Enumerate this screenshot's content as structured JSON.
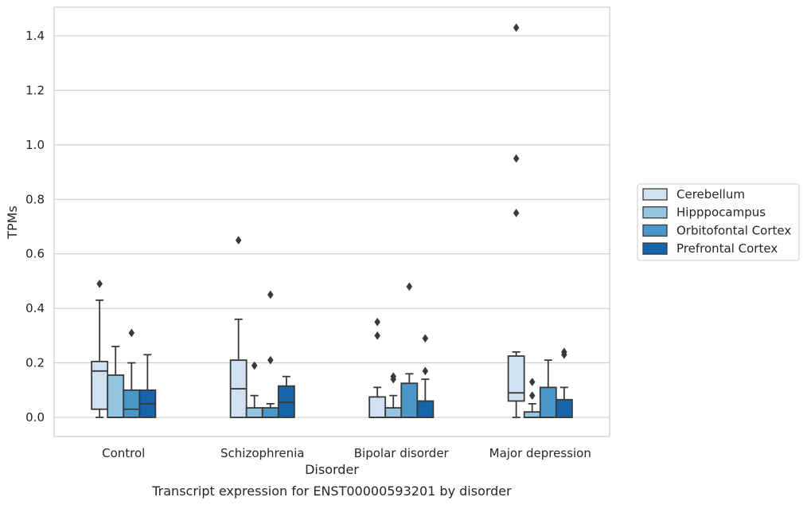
{
  "chart_data": {
    "type": "box",
    "caption": "Transcript expression for ENST00000593201 by disorder",
    "xlabel": "Disorder",
    "ylabel": "TPMs",
    "ylim": [
      -0.07,
      1.5
    ],
    "yticks": [
      0.0,
      0.2,
      0.4,
      0.6,
      0.8,
      1.0,
      1.2,
      1.4
    ],
    "ytick_labels": [
      "0.0",
      "0.2",
      "0.4",
      "0.6",
      "0.8",
      "1.0",
      "1.2",
      "1.4"
    ],
    "grid": "horizontal",
    "legend_placement": "right",
    "categories": [
      "Control",
      "Schizophrenia",
      "Bipolar disorder",
      "Major depression"
    ],
    "series": [
      {
        "name": "Cerebellum",
        "color": "#d0e1f2",
        "boxes": [
          {
            "min": 0.0,
            "q1": 0.03,
            "median": 0.17,
            "q3": 0.205,
            "max": 0.43,
            "outliers": [
              0.49
            ]
          },
          {
            "min": 0.0,
            "q1": 0.0,
            "median": 0.105,
            "q3": 0.21,
            "max": 0.36,
            "outliers": [
              0.65
            ]
          },
          {
            "min": 0.0,
            "q1": 0.0,
            "median": 0.0,
            "q3": 0.075,
            "max": 0.11,
            "outliers": [
              0.3,
              0.35
            ]
          },
          {
            "min": 0.0,
            "q1": 0.06,
            "median": 0.09,
            "q3": 0.225,
            "max": 0.24,
            "outliers": [
              0.75,
              0.95,
              1.43
            ]
          }
        ]
      },
      {
        "name": "Hipppocampus",
        "color": "#94c4df",
        "boxes": [
          {
            "min": 0.0,
            "q1": 0.0,
            "median": 0.0,
            "q3": 0.155,
            "max": 0.26,
            "outliers": []
          },
          {
            "min": 0.0,
            "q1": 0.0,
            "median": 0.0,
            "q3": 0.035,
            "max": 0.08,
            "outliers": [
              0.19
            ]
          },
          {
            "min": 0.0,
            "q1": 0.0,
            "median": 0.0,
            "q3": 0.035,
            "max": 0.08,
            "outliers": [
              0.14,
              0.15
            ]
          },
          {
            "min": 0.0,
            "q1": 0.0,
            "median": 0.0,
            "q3": 0.02,
            "max": 0.05,
            "outliers": [
              0.08,
              0.13
            ]
          }
        ]
      },
      {
        "name": "Orbitofontal Cortex",
        "color": "#4a98c9",
        "boxes": [
          {
            "min": 0.0,
            "q1": 0.0,
            "median": 0.03,
            "q3": 0.1,
            "max": 0.2,
            "outliers": [
              0.31
            ]
          },
          {
            "min": 0.0,
            "q1": 0.0,
            "median": 0.0,
            "q3": 0.035,
            "max": 0.05,
            "outliers": [
              0.21,
              0.45
            ]
          },
          {
            "min": 0.0,
            "q1": 0.0,
            "median": 0.0,
            "q3": 0.125,
            "max": 0.16,
            "outliers": [
              0.48
            ]
          },
          {
            "min": 0.0,
            "q1": 0.0,
            "median": 0.0,
            "q3": 0.11,
            "max": 0.21,
            "outliers": []
          }
        ]
      },
      {
        "name": "Prefrontal Cortex",
        "color": "#1764ab",
        "boxes": [
          {
            "min": 0.0,
            "q1": 0.0,
            "median": 0.05,
            "q3": 0.1,
            "max": 0.23,
            "outliers": []
          },
          {
            "min": 0.0,
            "q1": 0.0,
            "median": 0.055,
            "q3": 0.115,
            "max": 0.15,
            "outliers": []
          },
          {
            "min": 0.0,
            "q1": 0.0,
            "median": 0.0,
            "q3": 0.06,
            "max": 0.14,
            "outliers": [
              0.17,
              0.29
            ]
          },
          {
            "min": 0.0,
            "q1": 0.0,
            "median": 0.0,
            "q3": 0.065,
            "max": 0.11,
            "outliers": [
              0.23,
              0.24
            ]
          }
        ]
      }
    ]
  }
}
